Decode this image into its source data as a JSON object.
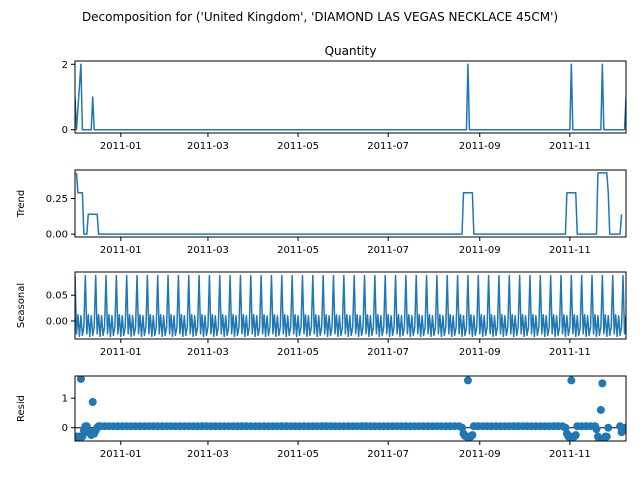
{
  "figure": {
    "suptitle": "Decomposition for ('United Kingdom', 'DIAMOND LAS VEGAS NECKLACE 45CM')"
  },
  "chart_data": [
    {
      "type": "line",
      "name": "observed",
      "title": "Quantity",
      "ylabel": "",
      "xlim": [
        "2010-12-01",
        "2011-12-09"
      ],
      "ylim": [
        -0.1,
        2.1
      ],
      "yticks": [
        0,
        2
      ],
      "xticks": [
        "2011-01",
        "2011-03",
        "2011-05",
        "2011-07",
        "2011-09",
        "2011-11"
      ],
      "points": [
        [
          "2010-12-01",
          1
        ],
        [
          "2010-12-02",
          0
        ],
        [
          "2010-12-05",
          2
        ],
        [
          "2010-12-06",
          0
        ],
        [
          "2010-12-12",
          0
        ],
        [
          "2010-12-13",
          1
        ],
        [
          "2010-12-14",
          0
        ],
        [
          "2011-08-23",
          0
        ],
        [
          "2011-08-24",
          2
        ],
        [
          "2011-08-25",
          0
        ],
        [
          "2011-11-01",
          0
        ],
        [
          "2011-11-02",
          2
        ],
        [
          "2011-11-03",
          0
        ],
        [
          "2011-11-22",
          0
        ],
        [
          "2011-11-23",
          2
        ],
        [
          "2011-11-24",
          0
        ],
        [
          "2011-12-08",
          0
        ],
        [
          "2011-12-09",
          1
        ]
      ]
    },
    {
      "type": "line",
      "name": "trend",
      "title": "",
      "ylabel": "Trend",
      "xlim": [
        "2010-12-01",
        "2011-12-09"
      ],
      "ylim": [
        -0.02,
        0.45
      ],
      "yticks": [
        0.0,
        0.25
      ],
      "ytick_labels": [
        "0.00",
        "0.25"
      ],
      "xticks": [
        "2011-01",
        "2011-03",
        "2011-05",
        "2011-07",
        "2011-09",
        "2011-11"
      ],
      "points": [
        [
          "2010-12-02",
          0.43
        ],
        [
          "2010-12-03",
          0.29
        ],
        [
          "2010-12-06",
          0.29
        ],
        [
          "2010-12-07",
          0.0
        ],
        [
          "2010-12-09",
          0.0
        ],
        [
          "2010-12-10",
          0.14
        ],
        [
          "2010-12-16",
          0.14
        ],
        [
          "2010-12-17",
          0.0
        ],
        [
          "2011-08-20",
          0.0
        ],
        [
          "2011-08-21",
          0.29
        ],
        [
          "2011-08-27",
          0.29
        ],
        [
          "2011-08-28",
          0.0
        ],
        [
          "2011-10-29",
          0.0
        ],
        [
          "2011-10-30",
          0.29
        ],
        [
          "2011-11-05",
          0.29
        ],
        [
          "2011-11-06",
          0.0
        ],
        [
          "2011-11-19",
          0.0
        ],
        [
          "2011-11-20",
          0.43
        ],
        [
          "2011-11-26",
          0.43
        ],
        [
          "2011-11-27",
          0.29
        ],
        [
          "2011-11-28",
          0.0
        ],
        [
          "2011-12-05",
          0.0
        ],
        [
          "2011-12-06",
          0.14
        ]
      ]
    },
    {
      "type": "line",
      "name": "seasonal",
      "title": "",
      "ylabel": "Seasonal",
      "xlim": [
        "2010-12-01",
        "2011-12-09"
      ],
      "ylim": [
        -0.035,
        0.095
      ],
      "yticks": [
        0.0,
        0.05
      ],
      "ytick_labels": [
        "0.00",
        "0.05"
      ],
      "xticks": [
        "2011-01",
        "2011-03",
        "2011-05",
        "2011-07",
        "2011-09",
        "2011-11"
      ],
      "period": 7,
      "start": "2010-12-01",
      "pattern": [
        0.088,
        -0.025,
        0.012,
        -0.03,
        0.01,
        -0.028,
        -0.012
      ]
    },
    {
      "type": "scatter",
      "name": "resid",
      "title": "",
      "ylabel": "Resid",
      "xlim": [
        "2010-12-01",
        "2011-12-09"
      ],
      "ylim": [
        -0.45,
        1.75
      ],
      "yticks": [
        0,
        1
      ],
      "xticks": [
        "2011-01",
        "2011-03",
        "2011-05",
        "2011-07",
        "2011-09",
        "2011-11"
      ],
      "baseline": 0,
      "points": [
        [
          "2010-12-02",
          -0.3
        ],
        [
          "2010-12-03",
          -0.3
        ],
        [
          "2010-12-04",
          -0.3
        ],
        [
          "2010-12-05",
          1.65
        ],
        [
          "2010-12-06",
          -0.3
        ],
        [
          "2010-12-07",
          -0.1
        ],
        [
          "2010-12-08",
          0.05
        ],
        [
          "2010-12-09",
          0.05
        ],
        [
          "2010-12-10",
          -0.15
        ],
        [
          "2010-12-11",
          -0.15
        ],
        [
          "2010-12-12",
          -0.25
        ],
        [
          "2010-12-13",
          0.87
        ],
        [
          "2010-12-14",
          -0.2
        ],
        [
          "2010-12-15",
          -0.1
        ],
        [
          "2010-12-16",
          0.0
        ],
        [
          "2010-12-17",
          0.05
        ],
        [
          "2011-08-20",
          0.0
        ],
        [
          "2011-08-21",
          -0.2
        ],
        [
          "2011-08-22",
          -0.28
        ],
        [
          "2011-08-23",
          -0.3
        ],
        [
          "2011-08-24",
          1.6
        ],
        [
          "2011-08-25",
          -0.3
        ],
        [
          "2011-08-26",
          -0.3
        ],
        [
          "2011-08-27",
          -0.25
        ],
        [
          "2011-10-29",
          0.0
        ],
        [
          "2011-10-30",
          -0.2
        ],
        [
          "2011-10-31",
          -0.3
        ],
        [
          "2011-11-01",
          -0.3
        ],
        [
          "2011-11-02",
          1.6
        ],
        [
          "2011-11-03",
          -0.3
        ],
        [
          "2011-11-04",
          -0.3
        ],
        [
          "2011-11-05",
          -0.25
        ],
        [
          "2011-11-19",
          -0.05
        ],
        [
          "2011-11-20",
          -0.3
        ],
        [
          "2011-11-21",
          -0.42
        ],
        [
          "2011-11-22",
          0.6
        ],
        [
          "2011-11-23",
          1.5
        ],
        [
          "2011-11-24",
          -0.42
        ],
        [
          "2011-11-25",
          -0.3
        ],
        [
          "2011-11-26",
          -0.3
        ],
        [
          "2011-11-27",
          0.0
        ],
        [
          "2011-12-05",
          0.05
        ],
        [
          "2011-12-06",
          -0.15
        ],
        [
          "2011-12-07",
          -0.1
        ],
        [
          "2011-12-08",
          0.0
        ]
      ]
    }
  ],
  "style": {
    "line_color": "#1f77b4",
    "marker_color": "#1f77b4",
    "axis_color": "#000000"
  }
}
